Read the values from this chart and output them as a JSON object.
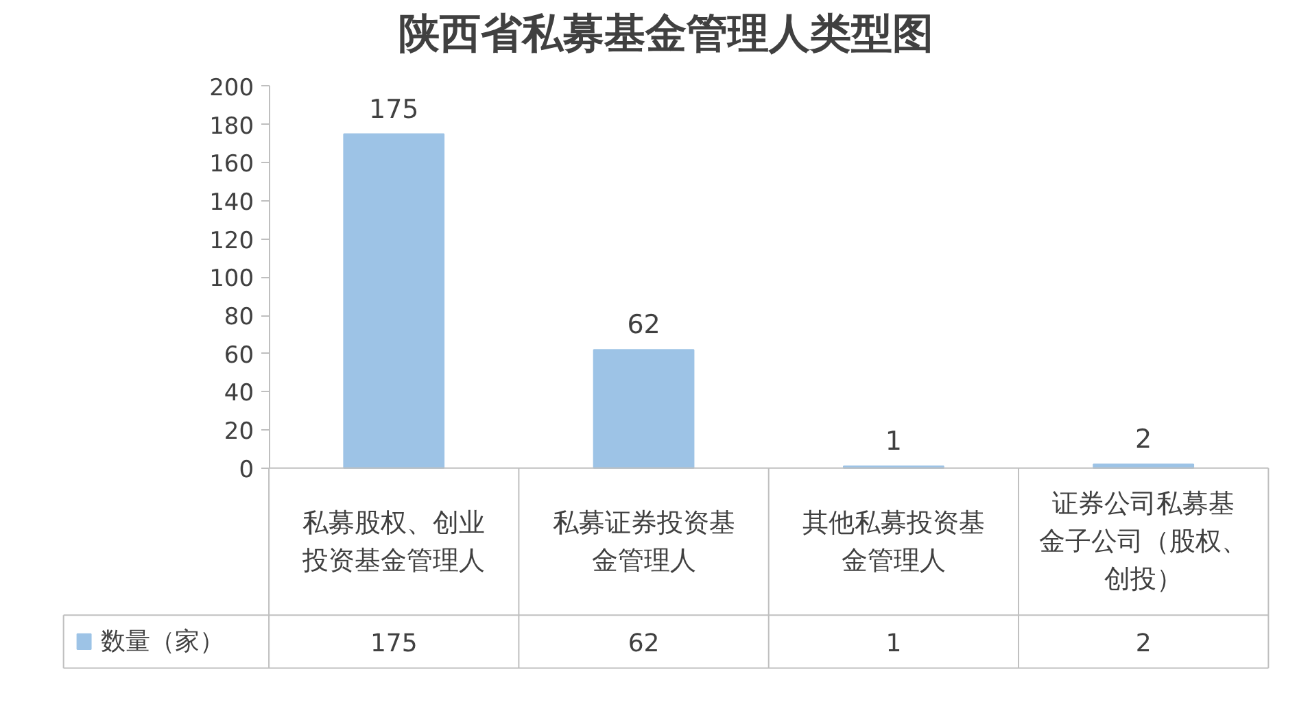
{
  "chart_data": {
    "type": "bar",
    "title": "陕西省私募基金管理人类型图",
    "categories": [
      "私募股权、创业投资基金管理人",
      "私募证券投资基金管理人",
      "其他私募投资基金管理人",
      "证券公司私募基金子公司（股权、创投）"
    ],
    "series": [
      {
        "name": "数量（家）",
        "color": "#9dc3e6",
        "values": [
          175,
          62,
          1,
          2
        ],
        "value_labels": [
          "175",
          "62",
          "1",
          "2"
        ]
      }
    ],
    "ylim": [
      0,
      200
    ],
    "yticks": [
      0,
      20,
      40,
      60,
      80,
      100,
      120,
      140,
      160,
      180,
      200
    ],
    "data_labels": true,
    "legend": "bottom",
    "grid": false
  }
}
